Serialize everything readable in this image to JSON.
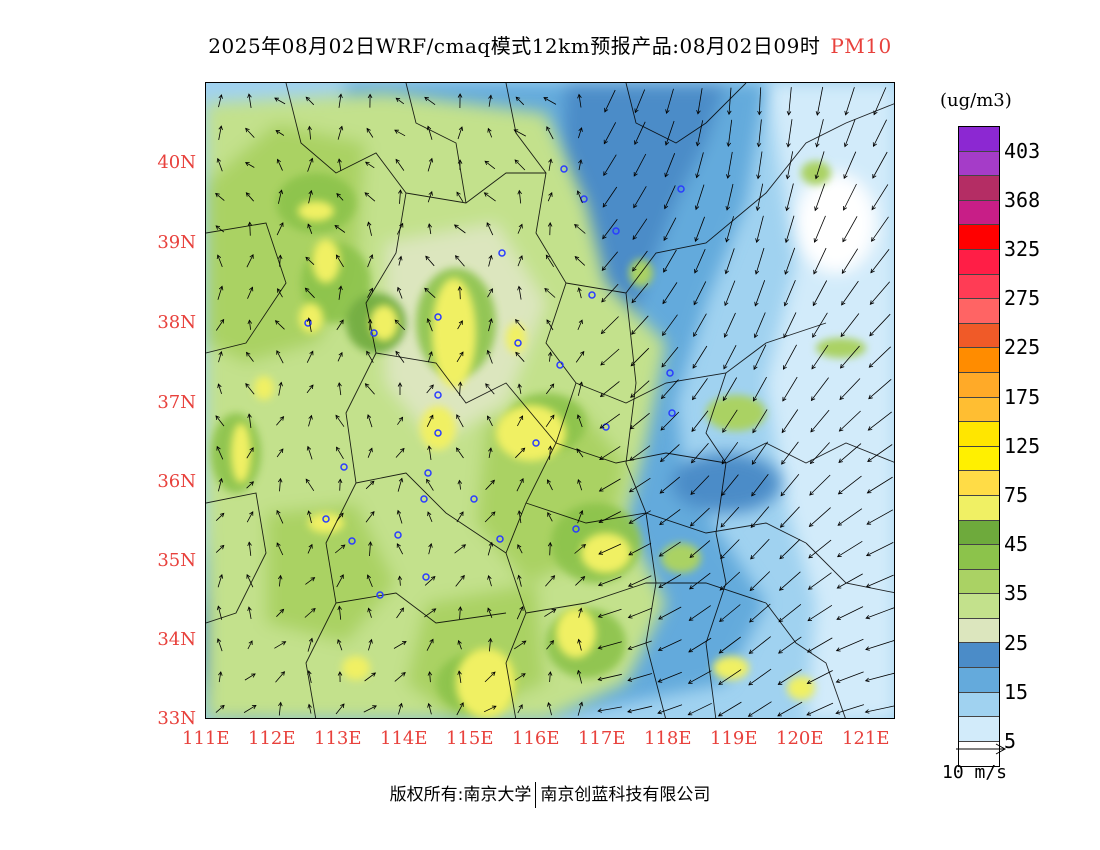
{
  "title": {
    "main": "2025年08月02日WRF/cmaq模式12km预报产品:08月02日09时",
    "pollutant": "PM10",
    "pollutant_color": "#e8413c"
  },
  "map": {
    "lat_labels": [
      "40N",
      "39N",
      "38N",
      "37N",
      "36N",
      "35N",
      "34N",
      "33N"
    ],
    "lon_labels": [
      "111E",
      "112E",
      "113E",
      "114E",
      "115E",
      "116E",
      "117E",
      "118E",
      "119E",
      "120E",
      "121E"
    ],
    "axis_label_color": "#e8413c"
  },
  "legend": {
    "units": "(ug/m3)",
    "colors": [
      "#8c28d2",
      "#a53cc8",
      "#b42d64",
      "#c81e87",
      "#ff0000",
      "#ff1e46",
      "#ff3c55",
      "#ff6464",
      "#f05a28",
      "#ff8c00",
      "#ffaa28",
      "#ffbe32",
      "#ffe600",
      "#fff000",
      "#ffdc46",
      "#f0f064",
      "#6eaa3c",
      "#8cc34b",
      "#aad264",
      "#c3e18c",
      "#dce6be",
      "#4b8cc8",
      "#64aadc",
      "#a0d2f0",
      "#d2ebfa",
      "#ffffff"
    ],
    "labels": [
      "403",
      "368",
      "325",
      "275",
      "225",
      "175",
      "125",
      "75",
      "45",
      "35",
      "25",
      "15",
      "5"
    ]
  },
  "wind_reference": {
    "label": "10 m/s"
  },
  "footer": {
    "left": "版权所有:南京大学",
    "right": "南京创蓝科技有限公司"
  }
}
